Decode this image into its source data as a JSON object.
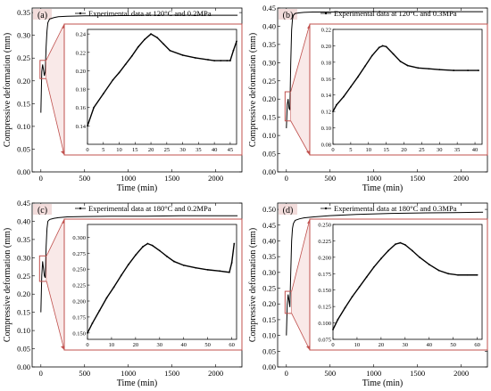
{
  "figure": {
    "accent_color": "#c0504d",
    "label_bg_color": "#f2dcdb",
    "line_color": "#000000"
  },
  "chart_data": [
    {
      "type": "line",
      "panel_label": "(a)",
      "legend": "Experimental data at 120°C and 0.2MPa",
      "legend_position": "top",
      "xlabel": "Time (min)",
      "ylabel": "Compressive deformation (mm)",
      "xlim": [
        -100,
        2300
      ],
      "ylim": [
        0,
        0.36
      ],
      "xticks": [
        0,
        500,
        1000,
        1500,
        2000
      ],
      "yticks": [
        0.0,
        0.05,
        0.1,
        0.15,
        0.2,
        0.25,
        0.3,
        0.35
      ],
      "ytick_decimals": 2,
      "series": [
        {
          "x": [
            0,
            10,
            20,
            30,
            40,
            50,
            60,
            70,
            80,
            100,
            150,
            200,
            300,
            500,
            800,
            1200,
            1600,
            2000,
            2250
          ],
          "y": [
            0.13,
            0.22,
            0.236,
            0.224,
            0.211,
            0.22,
            0.275,
            0.31,
            0.328,
            0.336,
            0.339,
            0.341,
            0.342,
            0.343,
            0.343,
            0.344,
            0.344,
            0.344,
            0.344
          ]
        }
      ],
      "zoom_box": {
        "x": [
          -10,
          60
        ],
        "y": [
          0.205,
          0.245
        ]
      },
      "inset": {
        "xlim": [
          0,
          47
        ],
        "ylim": [
          0.12,
          0.245
        ],
        "xticks": [
          0,
          5,
          10,
          15,
          20,
          25,
          30,
          35,
          40,
          45
        ],
        "yticks": [
          0.14,
          0.16,
          0.18,
          0.2,
          0.22,
          0.24
        ],
        "ytick_decimals": 2,
        "series": [
          {
            "x": [
              0,
              2,
              5,
              8,
              10,
              12,
              14,
              16,
              18,
              20,
              22,
              24,
              26,
              30,
              34,
              38,
              40,
              42,
              44,
              45,
              46,
              47
            ],
            "y": [
              0.14,
              0.16,
              0.175,
              0.19,
              0.198,
              0.207,
              0.216,
              0.226,
              0.234,
              0.24,
              0.236,
              0.229,
              0.222,
              0.217,
              0.214,
              0.212,
              0.211,
              0.211,
              0.211,
              0.211,
              0.222,
              0.232
            ]
          }
        ]
      }
    },
    {
      "type": "line",
      "panel_label": "(b)",
      "legend": "Experimental data at 120°C and 0.3MPa",
      "legend_position": "top",
      "xlabel": "Time (min)",
      "ylabel": "Compressive deformation (mm)",
      "xlim": [
        -100,
        2300
      ],
      "ylim": [
        0,
        0.45
      ],
      "xticks": [
        0,
        500,
        1000,
        1500,
        2000
      ],
      "yticks": [
        0.0,
        0.05,
        0.1,
        0.15,
        0.2,
        0.25,
        0.3,
        0.35,
        0.4,
        0.45
      ],
      "ytick_decimals": 2,
      "series": [
        {
          "x": [
            0,
            10,
            20,
            30,
            40,
            50,
            60,
            70,
            80,
            100,
            150,
            200,
            300,
            500,
            800,
            1200,
            1600,
            2000,
            2250
          ],
          "y": [
            0.12,
            0.185,
            0.2,
            0.175,
            0.17,
            0.3,
            0.39,
            0.42,
            0.43,
            0.435,
            0.437,
            0.438,
            0.439,
            0.439,
            0.44,
            0.44,
            0.44,
            0.44,
            0.44
          ]
        }
      ],
      "zoom_box": {
        "x": [
          -15,
          50
        ],
        "y": [
          0.14,
          0.22
        ]
      },
      "inset": {
        "xlim": [
          0,
          42
        ],
        "ylim": [
          0.08,
          0.22
        ],
        "xticks": [
          0,
          5,
          10,
          15,
          20,
          25,
          30,
          35,
          40
        ],
        "yticks": [
          0.08,
          0.1,
          0.12,
          0.14,
          0.16,
          0.18,
          0.2,
          0.22
        ],
        "ytick_decimals": 2,
        "series": [
          {
            "x": [
              0,
              1,
              3,
              5,
              7,
              9,
              11,
              13,
              14,
              15,
              17,
              19,
              21,
              24,
              27,
              30,
              34,
              38,
              41
            ],
            "y": [
              0.12,
              0.128,
              0.138,
              0.15,
              0.162,
              0.175,
              0.188,
              0.198,
              0.2,
              0.199,
              0.19,
              0.181,
              0.176,
              0.173,
              0.172,
              0.171,
              0.17,
              0.17,
              0.17
            ]
          }
        ]
      }
    },
    {
      "type": "line",
      "panel_label": "(c)",
      "legend": "Experimental data at 180°C and 0.2MPa",
      "legend_position": "top",
      "xlabel": "Time (min)",
      "ylabel": "Compressive deformation (mm)",
      "xlim": [
        -100,
        2300
      ],
      "ylim": [
        0,
        0.45
      ],
      "xticks": [
        0,
        500,
        1000,
        1500,
        2000
      ],
      "yticks": [
        0.0,
        0.05,
        0.1,
        0.15,
        0.2,
        0.25,
        0.3,
        0.35,
        0.4,
        0.45
      ],
      "ytick_decimals": 2,
      "series": [
        {
          "x": [
            0,
            10,
            20,
            30,
            40,
            50,
            60,
            70,
            80,
            100,
            150,
            200,
            300,
            500,
            800,
            1200,
            1600,
            2000,
            2250
          ],
          "y": [
            0.15,
            0.25,
            0.29,
            0.27,
            0.25,
            0.245,
            0.33,
            0.38,
            0.4,
            0.405,
            0.408,
            0.41,
            0.412,
            0.413,
            0.414,
            0.414,
            0.415,
            0.415,
            0.415
          ]
        }
      ],
      "zoom_box": {
        "x": [
          -15,
          65
        ],
        "y": [
          0.235,
          0.305
        ]
      },
      "inset": {
        "xlim": [
          0,
          62
        ],
        "ylim": [
          0.14,
          0.32
        ],
        "xticks": [
          0,
          10,
          20,
          30,
          40,
          50,
          60
        ],
        "yticks": [
          0.15,
          0.175,
          0.2,
          0.225,
          0.25,
          0.275,
          0.3
        ],
        "ytick_decimals": 3,
        "series": [
          {
            "x": [
              0,
              2,
              5,
              8,
              11,
              14,
              17,
              20,
              23,
              25,
              27,
              30,
              33,
              36,
              40,
              45,
              50,
              55,
              59,
              60,
              61
            ],
            "y": [
              0.15,
              0.165,
              0.185,
              0.205,
              0.222,
              0.24,
              0.257,
              0.272,
              0.285,
              0.29,
              0.287,
              0.279,
              0.27,
              0.262,
              0.256,
              0.252,
              0.249,
              0.247,
              0.245,
              0.26,
              0.29
            ]
          }
        ]
      }
    },
    {
      "type": "line",
      "panel_label": "(d)",
      "legend": "Experimental data at 180°C and 0.3MPa",
      "legend_position": "top",
      "xlabel": "Time (min)",
      "ylabel": "Compressive deformation (mm)",
      "xlim": [
        -100,
        2300
      ],
      "ylim": [
        0,
        0.52
      ],
      "xticks": [
        0,
        500,
        1000,
        1500,
        2000
      ],
      "yticks": [
        0.0,
        0.05,
        0.1,
        0.15,
        0.2,
        0.25,
        0.3,
        0.35,
        0.4,
        0.45,
        0.5
      ],
      "ytick_decimals": 2,
      "series": [
        {
          "x": [
            0,
            10,
            20,
            30,
            40,
            50,
            60,
            70,
            80,
            100,
            150,
            200,
            300,
            500,
            800,
            1200,
            1600,
            2000,
            2250
          ],
          "y": [
            0.1,
            0.2,
            0.23,
            0.21,
            0.19,
            0.3,
            0.4,
            0.44,
            0.455,
            0.465,
            0.47,
            0.473,
            0.476,
            0.48,
            0.484,
            0.487,
            0.489,
            0.49,
            0.491
          ]
        }
      ],
      "zoom_box": {
        "x": [
          -15,
          60
        ],
        "y": [
          0.17,
          0.24
        ]
      },
      "inset": {
        "xlim": [
          0,
          62
        ],
        "ylim": [
          0.075,
          0.25
        ],
        "xticks": [
          0,
          10,
          20,
          30,
          40,
          50,
          60
        ],
        "yticks": [
          0.075,
          0.1,
          0.125,
          0.15,
          0.175,
          0.2,
          0.225,
          0.25
        ],
        "ytick_decimals": 3,
        "series": [
          {
            "x": [
              0,
              2,
              5,
              8,
              11,
              14,
              17,
              20,
              23,
              26,
              28,
              30,
              33,
              36,
              40,
              44,
              48,
              52,
              56,
              60
            ],
            "y": [
              0.09,
              0.105,
              0.123,
              0.14,
              0.155,
              0.17,
              0.185,
              0.198,
              0.21,
              0.22,
              0.222,
              0.219,
              0.21,
              0.2,
              0.189,
              0.18,
              0.175,
              0.173,
              0.173,
              0.173
            ]
          }
        ]
      }
    }
  ]
}
